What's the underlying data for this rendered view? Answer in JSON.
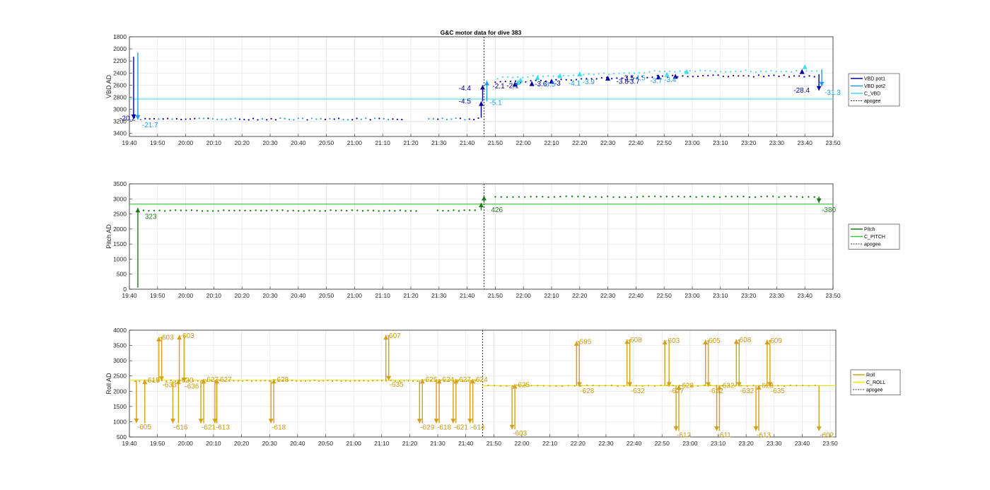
{
  "title": "G&C motor data for dive 383",
  "chart_data": [
    {
      "type": "line",
      "id": "vbd",
      "ylabel": "VBD AD",
      "ylim": [
        3450,
        1800
      ],
      "y_reversed": true,
      "yticks": [
        1800,
        2000,
        2200,
        2400,
        2600,
        2800,
        3000,
        3200,
        3400
      ],
      "xlim_minutes": [
        0,
        250
      ],
      "xticks": [
        "19:40",
        "19:50",
        "20:00",
        "20:10",
        "20:20",
        "20:30",
        "20:40",
        "20:50",
        "21:00",
        "21:10",
        "21:20",
        "21:30",
        "21:40",
        "21:50",
        "22:00",
        "22:10",
        "22:20",
        "22:30",
        "22:40",
        "22:50",
        "23:00",
        "23:10",
        "23:20",
        "23:30",
        "23:40",
        "23:50"
      ],
      "grid": true,
      "legend": "right",
      "apogee_minutes": 126,
      "series": [
        {
          "name": "VBD pot1",
          "color": "#0000a0"
        },
        {
          "name": "VBD pot2",
          "color": "#1f9be8"
        },
        {
          "name": "C_VBD",
          "color": "#3fdcec",
          "constant": 2830
        },
        {
          "name": "apogee",
          "color": "#333333",
          "dashed": true
        }
      ],
      "arrows": [
        {
          "t": 1.5,
          "from": 2130,
          "to": 3160,
          "color": "#0000a0"
        },
        {
          "t": 3,
          "from": 2060,
          "to": 3170,
          "color": "#1f9be8"
        },
        {
          "t": 125,
          "from": 3140,
          "to": 2870,
          "color": "#0000a0"
        },
        {
          "t": 125.5,
          "from": 2870,
          "to": 2600,
          "color": "#0000a0"
        },
        {
          "t": 127,
          "from": 2870,
          "to": 2530,
          "color": "#1f9be8"
        },
        {
          "t": 245,
          "from": 2420,
          "to": 2690,
          "color": "#0000a0"
        },
        {
          "t": 246,
          "from": 2340,
          "to": 2620,
          "color": "#1f9be8"
        }
      ],
      "tri_markers": [
        {
          "t": 137,
          "v": 2590,
          "color": "#0000a0"
        },
        {
          "t": 138,
          "v": 2560,
          "color": "#3fdcec"
        },
        {
          "t": 139,
          "v": 2520,
          "color": "#3fdcec"
        },
        {
          "t": 143,
          "v": 2580,
          "color": "#0000a0"
        },
        {
          "t": 145,
          "v": 2480,
          "color": "#3fdcec"
        },
        {
          "t": 150,
          "v": 2540,
          "color": "#0000a0"
        },
        {
          "t": 153,
          "v": 2450,
          "color": "#3fdcec"
        },
        {
          "t": 160,
          "v": 2420,
          "color": "#3fdcec"
        },
        {
          "t": 170,
          "v": 2490,
          "color": "#0000a0"
        },
        {
          "t": 188,
          "v": 2470,
          "color": "#0000a0"
        },
        {
          "t": 191,
          "v": 2430,
          "color": "#3fdcec"
        },
        {
          "t": 194,
          "v": 2460,
          "color": "#0000a0"
        },
        {
          "t": 198,
          "v": 2380,
          "color": "#3fdcec"
        },
        {
          "t": 239,
          "v": 2380,
          "color": "#0000a0"
        },
        {
          "t": 240,
          "v": 2300,
          "color": "#3fdcec"
        }
      ],
      "annotations": [
        {
          "text": "-20.2",
          "t": -3.5,
          "v": 3140,
          "color": "#0000a0"
        },
        {
          "text": "-21.7",
          "t": 4.5,
          "v": 3250,
          "color": "#1f9be8"
        },
        {
          "text": "-4.4",
          "t": 117,
          "v": 2640,
          "color": "#0000a0"
        },
        {
          "text": "-4.5",
          "t": 117,
          "v": 2860,
          "color": "#0000a0"
        },
        {
          "text": "-5.1",
          "t": 128,
          "v": 2880,
          "color": "#1f9be8"
        },
        {
          "text": "-2.1",
          "t": 129,
          "v": 2610,
          "color": "#0000a0"
        },
        {
          "text": "-2.1",
          "t": 134,
          "v": 2600,
          "color": "#0000a0"
        },
        {
          "text": "-3.6",
          "t": 144,
          "v": 2570,
          "color": "#0000a0"
        },
        {
          "text": "-3.5",
          "t": 147,
          "v": 2580,
          "color": "#1f9be8"
        },
        {
          "text": "-3",
          "t": 151,
          "v": 2560,
          "color": "#0000a0"
        },
        {
          "text": "-4.1",
          "t": 156,
          "v": 2560,
          "color": "#1f9be8"
        },
        {
          "text": "-3.9",
          "t": 161,
          "v": 2540,
          "color": "#1f9be8"
        },
        {
          "text": "-3.8",
          "t": 173,
          "v": 2530,
          "color": "#0000a0"
        },
        {
          "text": "-3.7",
          "t": 177,
          "v": 2530,
          "color": "#0000a0"
        },
        {
          "text": "-3.5",
          "t": 175,
          "v": 2470,
          "color": "#0000a0"
        },
        {
          "text": "-4.5",
          "t": 179,
          "v": 2470,
          "color": "#1f9be8"
        },
        {
          "text": "-3.7",
          "t": 185,
          "v": 2520,
          "color": "#1f9be8"
        },
        {
          "text": "-3.4",
          "t": 190,
          "v": 2500,
          "color": "#1f9be8"
        },
        {
          "text": "-28.4",
          "t": 236,
          "v": 2680,
          "color": "#0000a0"
        },
        {
          "text": "-31.3",
          "t": 247,
          "v": 2710,
          "color": "#1f9be8"
        }
      ]
    },
    {
      "type": "line",
      "id": "pitch",
      "ylabel": "Pitch AD",
      "ylim": [
        0,
        3500
      ],
      "y_reversed": false,
      "yticks": [
        0,
        500,
        1000,
        1500,
        2000,
        2500,
        3000,
        3500
      ],
      "xlim_minutes": [
        0,
        250
      ],
      "xticks": [
        "19:40",
        "19:50",
        "20:00",
        "20:10",
        "20:20",
        "20:30",
        "20:40",
        "20:50",
        "21:00",
        "21:10",
        "21:20",
        "21:30",
        "21:40",
        "21:50",
        "22:00",
        "22:10",
        "22:20",
        "22:30",
        "22:40",
        "22:50",
        "23:00",
        "23:10",
        "23:20",
        "23:30",
        "23:40",
        "23:50"
      ],
      "grid": true,
      "legend": "right",
      "apogee_minutes": 126,
      "series": [
        {
          "name": "Pitch",
          "color": "#1a7a1a"
        },
        {
          "name": "C_PITCH",
          "color": "#33cc33",
          "constant": 2830
        },
        {
          "name": "apogee",
          "color": "#333333",
          "dashed": true
        }
      ],
      "arrows": [
        {
          "t": 3,
          "from": 50,
          "to": 2700,
          "color": "#1a7a1a"
        },
        {
          "t": 125,
          "from": 2620,
          "to": 2870,
          "color": "#1a7a1a"
        },
        {
          "t": 126,
          "from": 2870,
          "to": 3100,
          "color": "#1a7a1a"
        },
        {
          "t": 245,
          "from": 3080,
          "to": 2870,
          "color": "#1a7a1a"
        }
      ],
      "annotations": [
        {
          "text": "323",
          "t": 5.5,
          "v": 2430,
          "color": "#1a7a1a"
        },
        {
          "text": "426",
          "t": 128.5,
          "v": 2650,
          "color": "#1a7a1a"
        },
        {
          "text": "-380",
          "t": 246,
          "v": 2650,
          "color": "#1a7a1a"
        }
      ]
    },
    {
      "type": "line",
      "id": "roll",
      "ylabel": "Roll AD",
      "ylim": [
        500,
        4000
      ],
      "y_reversed": false,
      "yticks": [
        500,
        1000,
        1500,
        2000,
        2500,
        3000,
        3500,
        4000
      ],
      "xlim_minutes": [
        0,
        252
      ],
      "xticks": [
        "19:40",
        "19:50",
        "20:00",
        "20:10",
        "20:20",
        "20:30",
        "20:40",
        "20:50",
        "21:00",
        "21:10",
        "21:20",
        "21:30",
        "21:40",
        "21:50",
        "22:00",
        "22:10",
        "22:20",
        "22:30",
        "22:40",
        "22:50",
        "23:00",
        "23:10",
        "23:20",
        "23:30",
        "23:40",
        "23:50"
      ],
      "grid": true,
      "legend": "right",
      "apogee_minutes": 126,
      "series": [
        {
          "name": "Roll",
          "color": "#d4a017"
        },
        {
          "name": "C_ROLL",
          "color": "#f2e600",
          "pre_apogee": 2360,
          "post_apogee": 2180
        },
        {
          "name": "apogee",
          "color": "#333333",
          "dashed": true
        }
      ],
      "roll_events": [
        {
          "t": 2.5,
          "dir": "down",
          "base": 2350,
          "tip": 960,
          "label": "-605",
          "lab_pos": "below"
        },
        {
          "t": 5.5,
          "dir": "up",
          "base": 950,
          "tip": 2380,
          "label": "-615",
          "lab_pos": "above"
        },
        {
          "t": 10.5,
          "dir": "up",
          "base": 2300,
          "tip": 3780,
          "label": "-603",
          "lab_pos": "above"
        },
        {
          "t": 11.5,
          "dir": "down",
          "base": 3780,
          "tip": 2340,
          "label": "-633",
          "lab_pos": "below"
        },
        {
          "t": 15.5,
          "dir": "down",
          "base": 2330,
          "tip": 950,
          "label": "-616",
          "lab_pos": "below"
        },
        {
          "t": 17.5,
          "dir": "up",
          "base": 950,
          "tip": 2380,
          "label": "-620",
          "lab_pos": "above"
        },
        {
          "t": 17.8,
          "dir": "up",
          "base": 2300,
          "tip": 3840,
          "label": "-603",
          "lab_pos": "above"
        },
        {
          "t": 19.5,
          "dir": "down",
          "base": 3840,
          "tip": 2300,
          "label": "-636",
          "lab_pos": "below"
        },
        {
          "t": 25.5,
          "dir": "down",
          "base": 2350,
          "tip": 950,
          "label": "-621",
          "lab_pos": "below"
        },
        {
          "t": 26.5,
          "dir": "up",
          "base": 950,
          "tip": 2400,
          "label": "-627",
          "lab_pos": "above"
        },
        {
          "t": 30.5,
          "dir": "down",
          "base": 2350,
          "tip": 950,
          "label": "-613",
          "lab_pos": "below"
        },
        {
          "t": 31.2,
          "dir": "up",
          "base": 950,
          "tip": 2400,
          "label": "-627",
          "lab_pos": "above"
        },
        {
          "t": 50.5,
          "dir": "down",
          "base": 2350,
          "tip": 950,
          "label": "-618",
          "lab_pos": "below"
        },
        {
          "t": 51.5,
          "dir": "up",
          "base": 950,
          "tip": 2400,
          "label": "-628",
          "lab_pos": "above"
        },
        {
          "t": 91.5,
          "dir": "up",
          "base": 2340,
          "tip": 3840,
          "label": "-607",
          "lab_pos": "above"
        },
        {
          "t": 92.5,
          "dir": "down",
          "base": 3840,
          "tip": 2350,
          "label": "-635",
          "lab_pos": "below"
        },
        {
          "t": 103.5,
          "dir": "down",
          "base": 2350,
          "tip": 950,
          "label": "-629",
          "lab_pos": "below"
        },
        {
          "t": 104.5,
          "dir": "up",
          "base": 950,
          "tip": 2400,
          "label": "-625",
          "lab_pos": "above"
        },
        {
          "t": 109.5,
          "dir": "down",
          "base": 2350,
          "tip": 950,
          "label": "-618",
          "lab_pos": "below"
        },
        {
          "t": 110.5,
          "dir": "up",
          "base": 950,
          "tip": 2400,
          "label": "-624",
          "lab_pos": "above"
        },
        {
          "t": 115.5,
          "dir": "down",
          "base": 2350,
          "tip": 950,
          "label": "-621",
          "lab_pos": "below"
        },
        {
          "t": 116.5,
          "dir": "up",
          "base": 950,
          "tip": 2400,
          "label": "-627",
          "lab_pos": "above"
        },
        {
          "t": 121.5,
          "dir": "down",
          "base": 2350,
          "tip": 950,
          "label": "-614",
          "lab_pos": "below"
        },
        {
          "t": 122.5,
          "dir": "up",
          "base": 950,
          "tip": 2400,
          "label": "-624",
          "lab_pos": "above"
        },
        {
          "t": 136.5,
          "dir": "down",
          "base": 2180,
          "tip": 750,
          "label": "-603",
          "lab_pos": "below"
        },
        {
          "t": 137.5,
          "dir": "up",
          "base": 750,
          "tip": 2230,
          "label": "-625",
          "lab_pos": "above"
        },
        {
          "t": 159.5,
          "dir": "up",
          "base": 2180,
          "tip": 3640,
          "label": "-595",
          "lab_pos": "above"
        },
        {
          "t": 160.5,
          "dir": "down",
          "base": 3640,
          "tip": 2150,
          "label": "-628",
          "lab_pos": "below"
        },
        {
          "t": 177.5,
          "dir": "up",
          "base": 2180,
          "tip": 3700,
          "label": "-608",
          "lab_pos": "above"
        },
        {
          "t": 178.5,
          "dir": "down",
          "base": 3700,
          "tip": 2150,
          "label": "-632",
          "lab_pos": "below"
        },
        {
          "t": 191,
          "dir": "up",
          "base": 2180,
          "tip": 3680,
          "label": "-603",
          "lab_pos": "above"
        },
        {
          "t": 192.5,
          "dir": "down",
          "base": 3680,
          "tip": 2150,
          "label": "-627",
          "lab_pos": "below"
        },
        {
          "t": 195,
          "dir": "down",
          "base": 2180,
          "tip": 700,
          "label": "-612",
          "lab_pos": "below"
        },
        {
          "t": 196,
          "dir": "up",
          "base": 700,
          "tip": 2200,
          "label": "-628",
          "lab_pos": "above"
        },
        {
          "t": 205.5,
          "dir": "up",
          "base": 2180,
          "tip": 3680,
          "label": "-605",
          "lab_pos": "above"
        },
        {
          "t": 206.5,
          "dir": "down",
          "base": 3680,
          "tip": 2150,
          "label": "-632",
          "lab_pos": "below"
        },
        {
          "t": 209.5,
          "dir": "down",
          "base": 2180,
          "tip": 700,
          "label": "-611",
          "lab_pos": "below"
        },
        {
          "t": 210.5,
          "dir": "up",
          "base": 700,
          "tip": 2200,
          "label": "-632",
          "lab_pos": "above"
        },
        {
          "t": 216.5,
          "dir": "up",
          "base": 2180,
          "tip": 3700,
          "label": "-608",
          "lab_pos": "above"
        },
        {
          "t": 217.5,
          "dir": "down",
          "base": 3700,
          "tip": 2150,
          "label": "-632",
          "lab_pos": "below"
        },
        {
          "t": 223.5,
          "dir": "down",
          "base": 2180,
          "tip": 700,
          "label": "-613",
          "lab_pos": "below"
        },
        {
          "t": 224.5,
          "dir": "up",
          "base": 700,
          "tip": 2200,
          "label": "-628",
          "lab_pos": "above"
        },
        {
          "t": 227.5,
          "dir": "up",
          "base": 2180,
          "tip": 3680,
          "label": "-609",
          "lab_pos": "above"
        },
        {
          "t": 228.5,
          "dir": "down",
          "base": 3680,
          "tip": 2150,
          "label": "-635",
          "lab_pos": "below"
        },
        {
          "t": 246,
          "dir": "down",
          "base": 2180,
          "tip": 700,
          "label": "-602",
          "lab_pos": "below"
        }
      ]
    }
  ]
}
